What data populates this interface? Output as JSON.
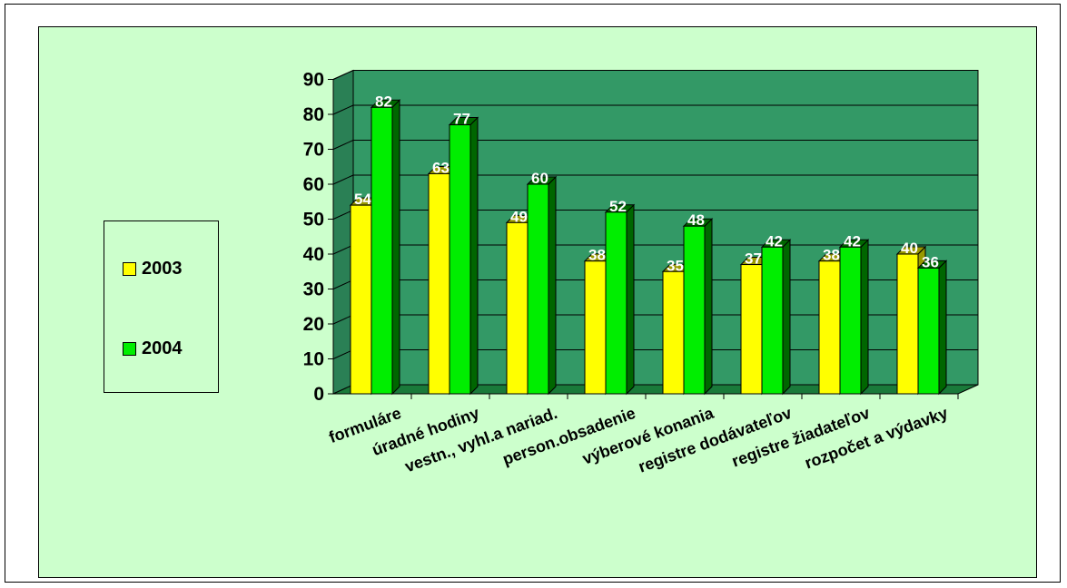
{
  "chart_data": {
    "type": "bar",
    "categories": [
      "formuláre",
      "úradné hodiny",
      "vestn., vyhl.a nariad.",
      "person.obsadenie",
      "výberové konania",
      "registre dodávateľov",
      "registre žiadateľov",
      "rozpočet a výdavky"
    ],
    "series": [
      {
        "name": "2003",
        "values": [
          54,
          63,
          49,
          38,
          35,
          37,
          38,
          40
        ],
        "color": "#ffff00",
        "side_color": "#999900"
      },
      {
        "name": "2004",
        "values": [
          82,
          77,
          60,
          52,
          48,
          42,
          42,
          36
        ],
        "color": "#00ee00",
        "side_color": "#006600"
      }
    ],
    "yticks": [
      "0",
      "10",
      "20",
      "30",
      "40",
      "50",
      "60",
      "70",
      "80",
      "90"
    ],
    "ylim": [
      0,
      90
    ],
    "grid": true,
    "legend_position": "left",
    "colors": {
      "plot_back": "#339966",
      "plot_floor": "#1a7a3a",
      "chart_background": "#ccffcc"
    }
  }
}
